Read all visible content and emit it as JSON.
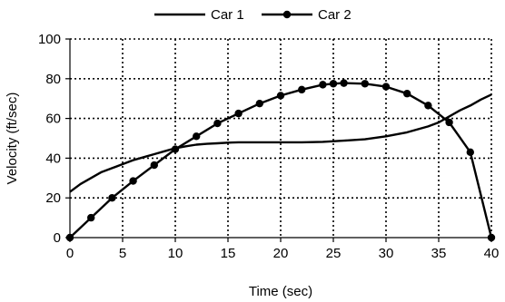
{
  "chart_data": {
    "type": "line",
    "title": "",
    "xlabel": "Time (sec)",
    "ylabel": "Velocity (ft/sec)",
    "xlim": [
      0,
      40
    ],
    "ylim": [
      0,
      100
    ],
    "xticks": [
      0,
      5,
      10,
      15,
      20,
      25,
      30,
      35,
      40
    ],
    "yticks": [
      0,
      20,
      40,
      60,
      80,
      100
    ],
    "grid": true,
    "legend_position": "top",
    "series": [
      {
        "name": "Car 1",
        "marker": "none",
        "color": "#000000",
        "x": [
          0,
          1,
          2,
          3,
          4,
          5,
          6,
          7,
          8,
          9,
          10,
          11,
          12,
          13,
          14,
          15,
          16,
          18,
          20,
          22,
          24,
          26,
          28,
          30,
          32,
          34,
          35,
          36,
          37,
          38,
          39,
          40
        ],
        "y": [
          23,
          27,
          30,
          33,
          35,
          37,
          39,
          40.5,
          42,
          43.5,
          45,
          46,
          46.8,
          47.2,
          47.5,
          47.8,
          48,
          48,
          48,
          48,
          48.2,
          48.8,
          49.5,
          51,
          53,
          56,
          58,
          61,
          64,
          66.5,
          69.5,
          72
        ]
      },
      {
        "name": "Car 2",
        "marker": "circle",
        "color": "#000000",
        "x": [
          0,
          2,
          4,
          6,
          8,
          10,
          12,
          14,
          16,
          18,
          20,
          22,
          24,
          25,
          26,
          28,
          30,
          32,
          34,
          36,
          38,
          40
        ],
        "y": [
          0,
          10,
          20,
          28.5,
          36.5,
          44.5,
          51,
          57.5,
          62.5,
          67.5,
          71.5,
          74.5,
          77,
          77.5,
          77.8,
          77.5,
          76,
          72.5,
          66.5,
          58,
          43,
          0
        ]
      }
    ]
  }
}
